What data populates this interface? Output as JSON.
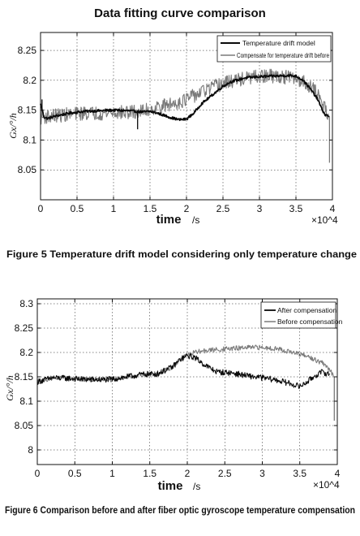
{
  "figure_title": "Data fitting curve comparison",
  "captions": [
    "Figure 5 Temperature drift model considering only temperature change",
    "Figure 6 Comparison before and after fiber optic gyroscope temperature compensation"
  ],
  "colors": {
    "dark_series": "#0a0a0a",
    "gray_series": "#7a7a7a",
    "axis": "#111111"
  },
  "chart_data": [
    {
      "type": "line",
      "title": "Data fitting curve comparison",
      "xlabel": "time",
      "xunit": "/s",
      "x_multiplier": "×10^4",
      "ylabel": "Gx/°/h",
      "xlim": [
        0,
        4
      ],
      "ylim": [
        8.0,
        8.28
      ],
      "xticks": [
        "0",
        "0.5",
        "1",
        "1.5",
        "2",
        "2.5",
        "3",
        "3.5",
        "4"
      ],
      "yticks": [
        "8.05",
        "8.1",
        "8.15",
        "8.2",
        "8.25"
      ],
      "grid": true,
      "legend_position": "top-right",
      "series": [
        {
          "name": "Temperature drift model",
          "color": "#0a0a0a",
          "noise": 0.002,
          "x": [
            0,
            0.05,
            0.1,
            0.2,
            0.4,
            0.6,
            0.8,
            1.0,
            1.2,
            1.3,
            1.4,
            1.5,
            1.6,
            1.7,
            1.8,
            1.9,
            2.0,
            2.1,
            2.2,
            2.3,
            2.4,
            2.5,
            2.6,
            2.8,
            3.0,
            3.2,
            3.4,
            3.5,
            3.6,
            3.7,
            3.8,
            3.85,
            3.9,
            3.95
          ],
          "values": [
            8.16,
            8.138,
            8.136,
            8.14,
            8.145,
            8.148,
            8.149,
            8.15,
            8.149,
            8.148,
            8.147,
            8.148,
            8.145,
            8.141,
            8.137,
            8.134,
            8.135,
            8.145,
            8.16,
            8.17,
            8.18,
            8.19,
            8.197,
            8.204,
            8.206,
            8.207,
            8.208,
            8.207,
            8.2,
            8.185,
            8.168,
            8.153,
            8.142,
            8.14
          ],
          "spikes": [
            {
              "x": 1.33,
              "y": 8.118
            },
            {
              "x": 0.02,
              "y": 8.168
            }
          ]
        },
        {
          "name": "Compensate for temperature drift before",
          "color": "#7a7a7a",
          "noise": 0.012,
          "x": [
            0,
            0.2,
            0.4,
            0.6,
            0.8,
            1.0,
            1.2,
            1.4,
            1.6,
            1.8,
            2.0,
            2.2,
            2.4,
            2.6,
            2.8,
            3.0,
            3.2,
            3.4,
            3.6,
            3.7,
            3.8,
            3.9,
            3.95
          ],
          "values": [
            8.138,
            8.141,
            8.143,
            8.145,
            8.145,
            8.146,
            8.146,
            8.148,
            8.155,
            8.16,
            8.168,
            8.18,
            8.19,
            8.198,
            8.203,
            8.206,
            8.207,
            8.205,
            8.198,
            8.19,
            8.176,
            8.155,
            8.14
          ],
          "spikes": [
            {
              "x": 3.96,
              "y": 8.062
            }
          ]
        }
      ]
    },
    {
      "type": "line",
      "xlabel": "time",
      "xunit": "/s",
      "x_multiplier": "×10^4",
      "ylabel": "Gx/°/h",
      "xlim": [
        0,
        4
      ],
      "ylim": [
        7.97,
        8.31
      ],
      "xticks": [
        "0",
        "0.5",
        "1",
        "1.5",
        "2",
        "2.5",
        "3",
        "3.5",
        "4"
      ],
      "yticks": [
        "8",
        "8.05",
        "8.1",
        "8.15",
        "8.2",
        "8.25",
        "8.3"
      ],
      "grid": true,
      "legend_position": "top-right",
      "series": [
        {
          "name": "After compensation",
          "color": "#0a0a0a",
          "noise": 0.006,
          "x": [
            0,
            0.2,
            0.4,
            0.6,
            0.8,
            1.0,
            1.2,
            1.4,
            1.6,
            1.8,
            1.9,
            2.0,
            2.1,
            2.2,
            2.3,
            2.4,
            2.6,
            2.8,
            3.0,
            3.2,
            3.4,
            3.5,
            3.6,
            3.7,
            3.8,
            3.9
          ],
          "values": [
            8.14,
            8.148,
            8.147,
            8.145,
            8.144,
            8.145,
            8.15,
            8.155,
            8.156,
            8.17,
            8.185,
            8.193,
            8.19,
            8.178,
            8.168,
            8.16,
            8.158,
            8.152,
            8.148,
            8.143,
            8.135,
            8.13,
            8.14,
            8.152,
            8.16,
            8.155
          ],
          "spikes": []
        },
        {
          "name": "Before compensation",
          "color": "#7a7a7a",
          "noise": 0.005,
          "x": [
            0,
            0.2,
            0.4,
            0.6,
            0.8,
            1.0,
            1.2,
            1.4,
            1.6,
            1.8,
            1.9,
            2.0,
            2.1,
            2.2,
            2.4,
            2.6,
            2.8,
            3.0,
            3.2,
            3.4,
            3.6,
            3.8,
            3.9,
            3.95
          ],
          "values": [
            8.14,
            8.148,
            8.147,
            8.145,
            8.144,
            8.145,
            8.15,
            8.155,
            8.156,
            8.17,
            8.185,
            8.195,
            8.2,
            8.203,
            8.206,
            8.208,
            8.21,
            8.21,
            8.208,
            8.2,
            8.192,
            8.178,
            8.165,
            8.15
          ],
          "spikes": [
            {
              "x": 3.96,
              "y": 8.06
            }
          ]
        }
      ]
    }
  ]
}
